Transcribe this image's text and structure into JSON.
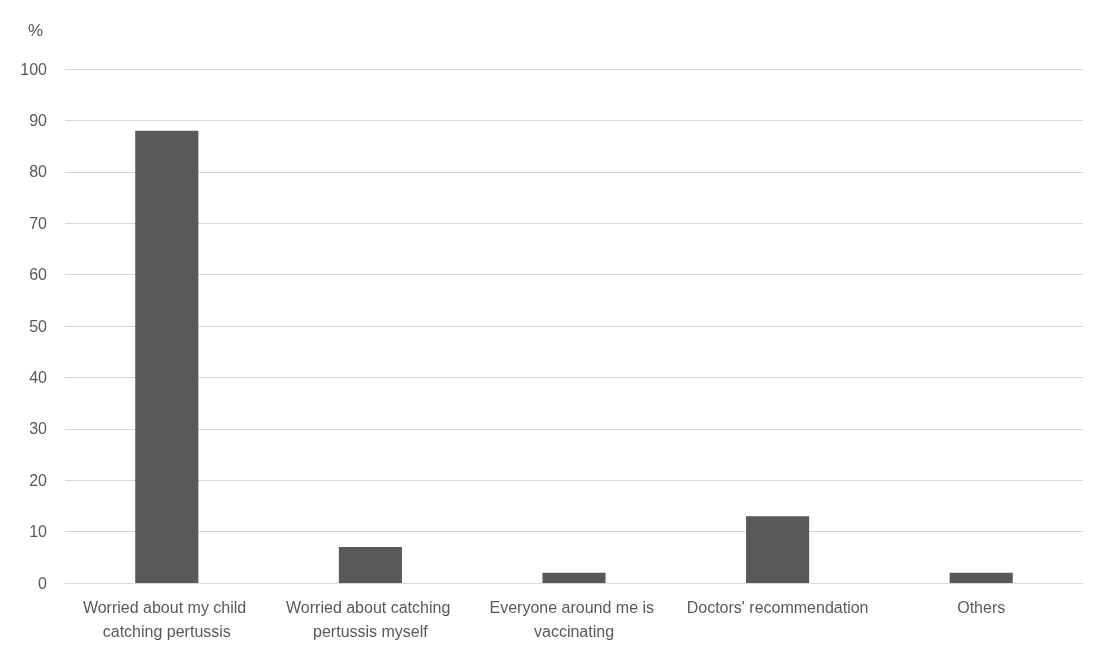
{
  "chart_data": {
    "type": "bar",
    "ylabel": "%",
    "categories": [
      "Worried about my child catching pertussis",
      "Worried about catching pertussis myself",
      "Everyone around me is vaccinating",
      "Doctors' recommendation",
      "Others"
    ],
    "values": [
      88,
      7,
      2,
      13,
      2
    ],
    "color": "#595959",
    "ylim": [
      0,
      100
    ],
    "yticks": [
      0,
      10,
      20,
      30,
      40,
      50,
      60,
      70,
      80,
      90,
      100
    ],
    "grid": "y"
  }
}
